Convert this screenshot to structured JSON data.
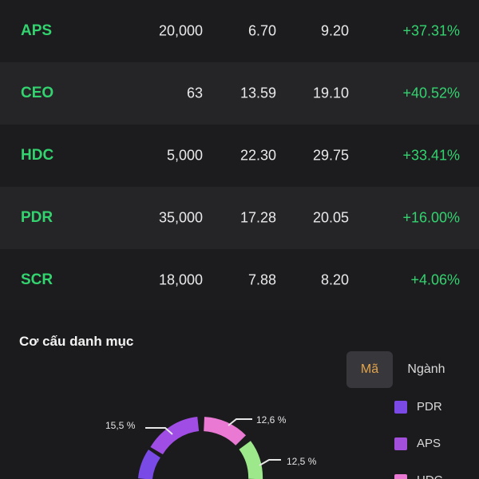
{
  "holdings": {
    "rows": [
      {
        "symbol": "APS",
        "quantity": "20,000",
        "avg_price": "6.70",
        "market_price": "9.20",
        "pnl_percent": "+37.31%"
      },
      {
        "symbol": "CEO",
        "quantity": "63",
        "avg_price": "13.59",
        "market_price": "19.10",
        "pnl_percent": "+40.52%"
      },
      {
        "symbol": "HDC",
        "quantity": "5,000",
        "avg_price": "22.30",
        "market_price": "29.75",
        "pnl_percent": "+33.41%"
      },
      {
        "symbol": "PDR",
        "quantity": "35,000",
        "avg_price": "17.28",
        "market_price": "20.05",
        "pnl_percent": "+16.00%"
      },
      {
        "symbol": "SCR",
        "quantity": "18,000",
        "avg_price": "7.88",
        "market_price": "8.20",
        "pnl_percent": "+4.06%"
      }
    ]
  },
  "portfolio_structure": {
    "title": "Cơ cấu danh mục",
    "toggle": {
      "active": "Mã",
      "options": [
        "Mã",
        "Ngành"
      ]
    },
    "legend": [
      {
        "label": "PDR",
        "color": "#7b49e6"
      },
      {
        "label": "APS",
        "color": "#a24fdc"
      },
      {
        "label": "HDC",
        "color": "#ea79d3"
      }
    ],
    "donut_labels": [
      "15,5 %",
      "12,6 %",
      "12,5 %"
    ],
    "colors": {
      "segment_purple": "#9f4de4",
      "segment_pink": "#ea79d3",
      "segment_green": "#9ce88a",
      "segment_violet": "#7a4ae7",
      "positive": "#33d36f",
      "active_tab_text": "#e3a44a"
    }
  }
}
